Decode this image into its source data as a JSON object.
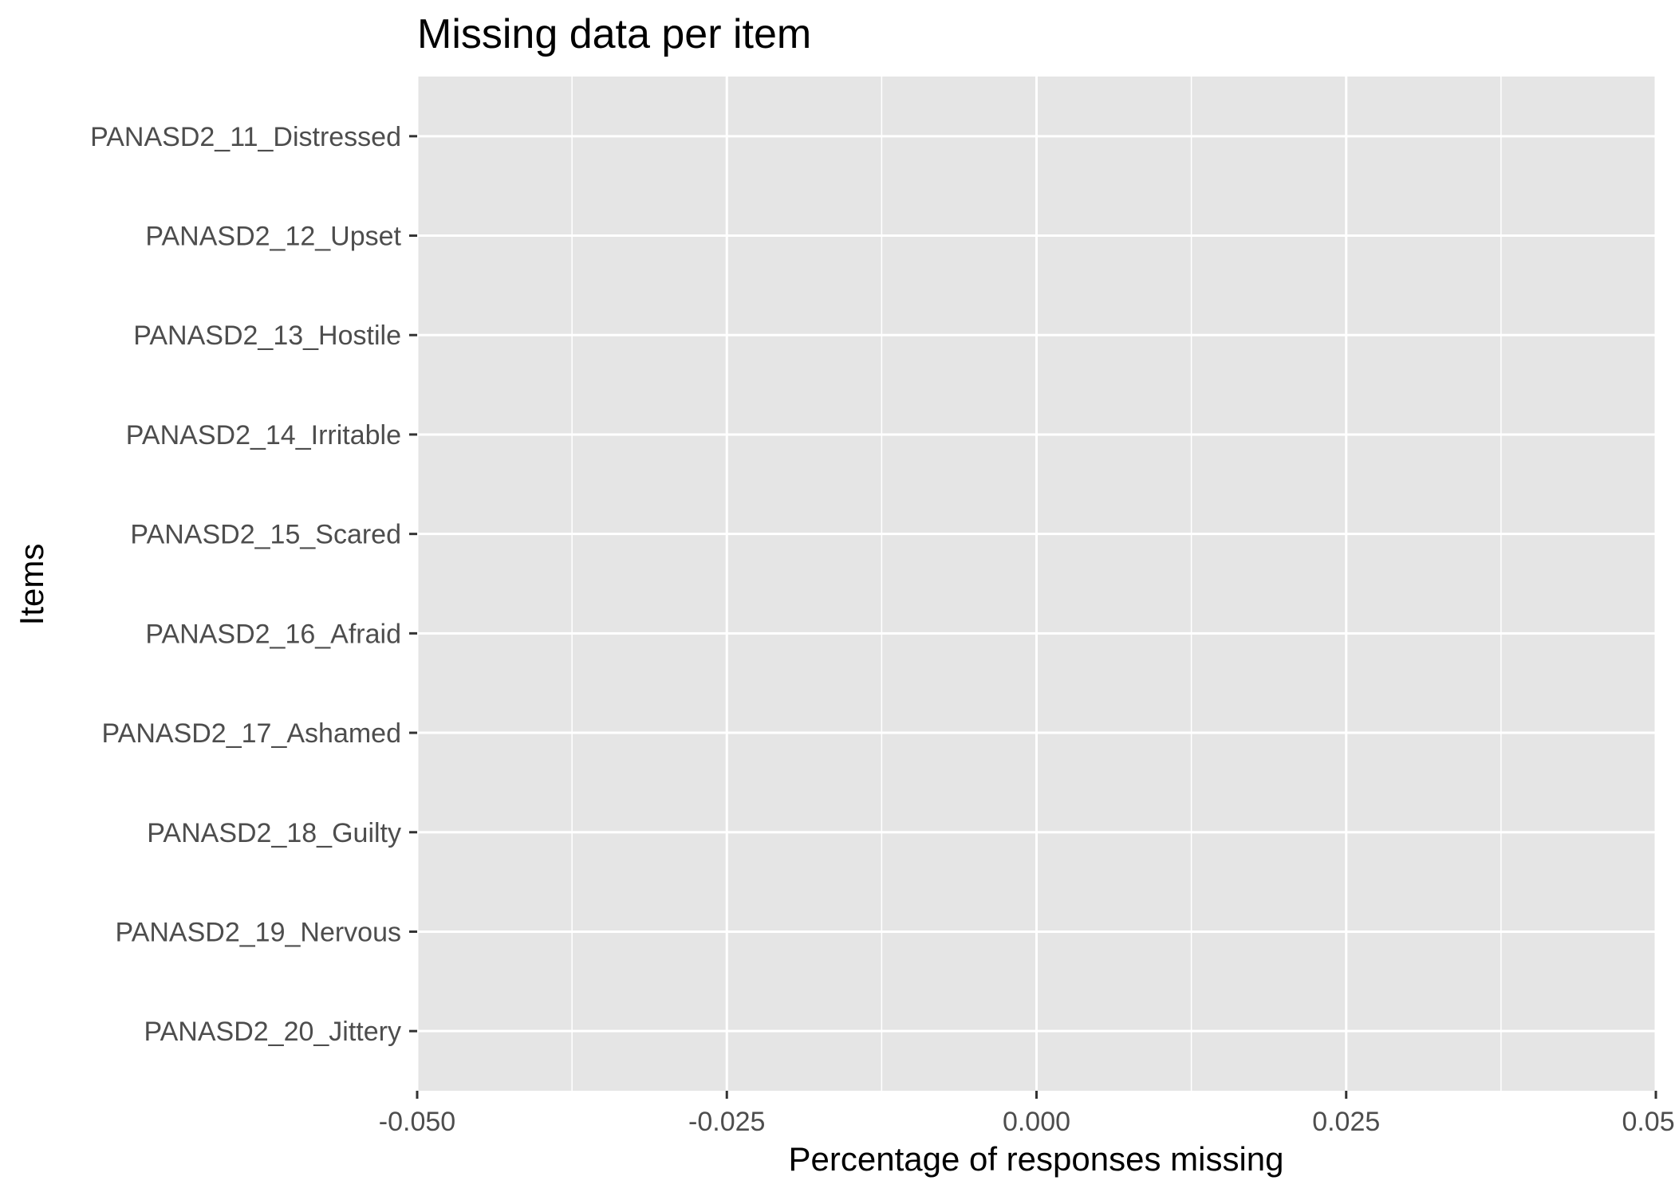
{
  "chart_data": {
    "type": "bar",
    "orientation": "horizontal",
    "title": "Missing data per item",
    "xlabel": "Percentage of responses missing",
    "ylabel": "Items",
    "categories": [
      "PANASD2_11_Distressed",
      "PANASD2_12_Upset",
      "PANASD2_13_Hostile",
      "PANASD2_14_Irritable",
      "PANASD2_15_Scared",
      "PANASD2_16_Afraid",
      "PANASD2_17_Ashamed",
      "PANASD2_18_Guilty",
      "PANASD2_19_Nervous",
      "PANASD2_20_Jittery"
    ],
    "values": [
      0,
      0,
      0,
      0,
      0,
      0,
      0,
      0,
      0,
      0
    ],
    "xlim": [
      -0.05,
      0.05
    ],
    "xticks": [
      -0.05,
      -0.025,
      0,
      0.025,
      0.05
    ],
    "xtick_labels": [
      "-0.050",
      "-0.025",
      "0.000",
      "0.025",
      "0.050"
    ],
    "grid": true,
    "panel_background": "#e5e5e5",
    "grid_color": "#ffffff"
  }
}
